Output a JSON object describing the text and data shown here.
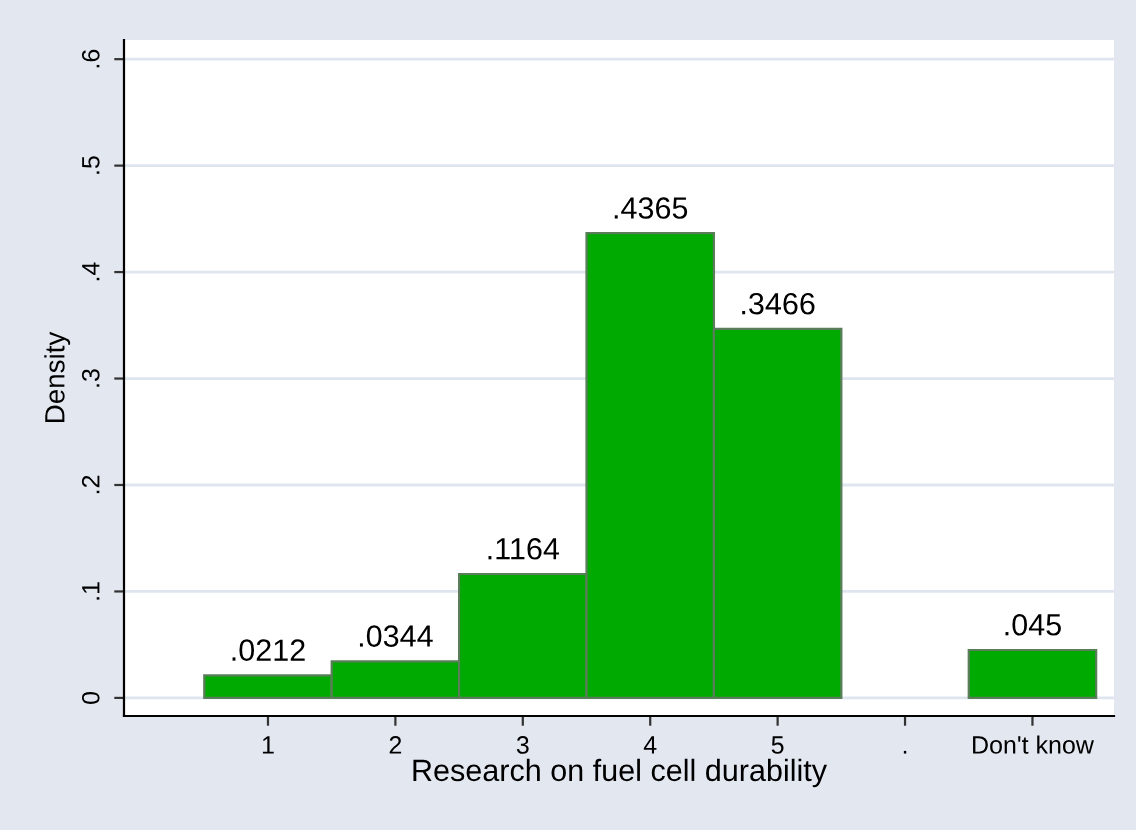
{
  "chart_data": {
    "type": "bar",
    "xlabel": "Research on fuel cell durability",
    "ylabel": "Density",
    "categories": [
      "1",
      "2",
      "3",
      "4",
      "5",
      ".",
      "Don't know"
    ],
    "values": [
      0.0212,
      0.0344,
      0.1164,
      0.4365,
      0.3466,
      null,
      0.045
    ],
    "value_labels": [
      ".0212",
      ".0344",
      ".1164",
      ".4365",
      ".3466",
      null,
      ".045"
    ],
    "color": "#00aa00",
    "ylim": [
      -0.017,
      0.618
    ],
    "yticks": [
      {
        "value": 0,
        "label": "0"
      },
      {
        "value": 0.1,
        "label": ".1"
      },
      {
        "value": 0.2,
        "label": ".2"
      },
      {
        "value": 0.3,
        "label": ".3"
      },
      {
        "value": 0.4,
        "label": ".4"
      },
      {
        "value": 0.5,
        "label": ".5"
      },
      {
        "value": 0.6,
        "label": ".6"
      }
    ],
    "grid": "y"
  }
}
